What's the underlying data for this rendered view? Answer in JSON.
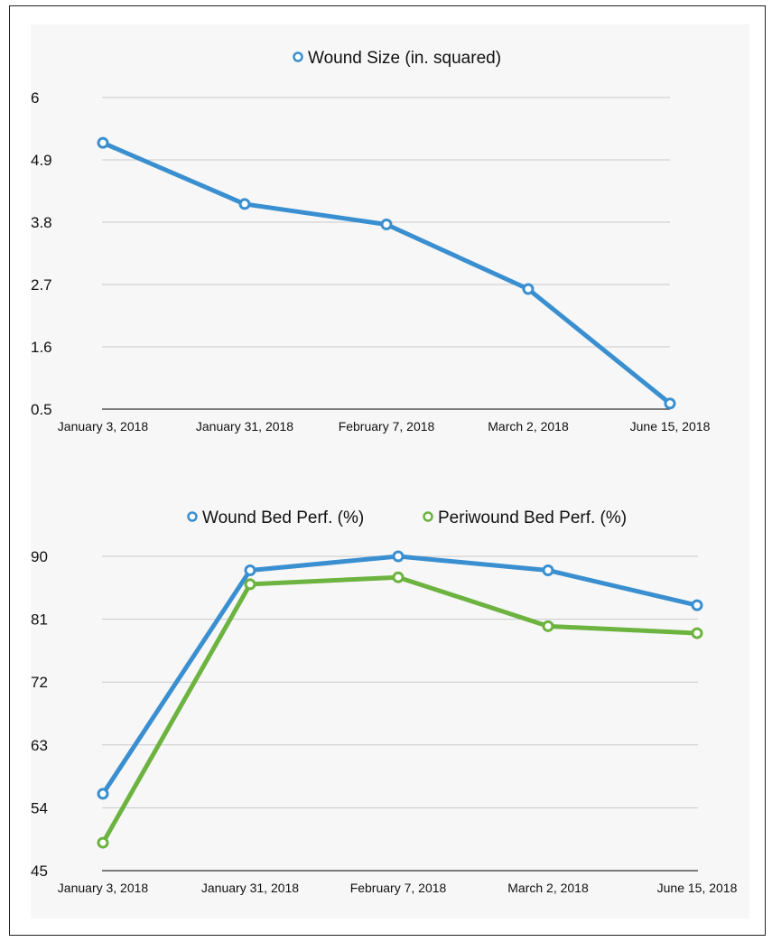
{
  "chart_data": [
    {
      "type": "line",
      "title": "",
      "xlabel": "",
      "ylabel": "",
      "categories": [
        "January 3, 2018",
        "January 31, 2018",
        "February 7, 2018",
        "March 2, 2018",
        "June 15, 2018"
      ],
      "y_ticks": [
        "6",
        "4.9",
        "3.8",
        "2.7",
        "1.6",
        "0.5"
      ],
      "ylim": [
        0.5,
        6
      ],
      "grid": true,
      "legend_position": "top-center",
      "series": [
        {
          "name": "Wound Size (in. squared)",
          "color": "#3a8fd0",
          "values": [
            5.2,
            4.12,
            3.76,
            2.62,
            0.6
          ]
        }
      ]
    },
    {
      "type": "line",
      "title": "",
      "xlabel": "",
      "ylabel": "",
      "categories": [
        "January 3, 2018",
        "January 31, 2018",
        "February 7, 2018",
        "March 2, 2018",
        "June 15, 2018"
      ],
      "y_ticks": [
        "90",
        "81",
        "72",
        "63",
        "54",
        "45"
      ],
      "ylim": [
        45,
        90
      ],
      "grid": true,
      "legend_position": "top-center",
      "series": [
        {
          "name": "Wound Bed Perf. (%)",
          "color": "#3a8fd0",
          "values": [
            56,
            88,
            90,
            88,
            83
          ]
        },
        {
          "name": "Periwound Bed Perf. (%)",
          "color": "#6cb33f",
          "values": [
            49,
            86,
            87,
            80,
            79
          ]
        }
      ]
    }
  ]
}
